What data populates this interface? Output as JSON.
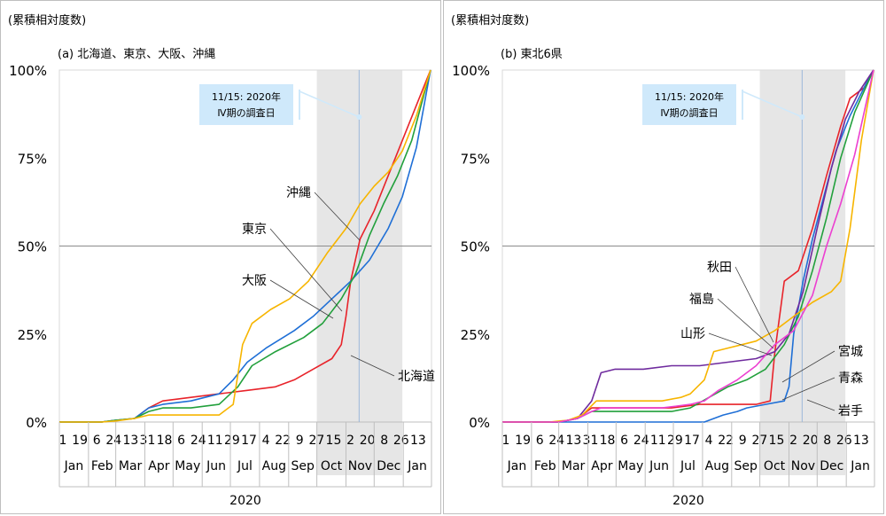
{
  "panels": [
    {
      "ylabel": "(累積相対度数)",
      "title": "(a) 北海道、東京、大阪、沖縄",
      "annotation": {
        "line1": "11/15: 2020年",
        "line2": "Ⅳ期の調査日"
      },
      "callouts": [
        "沖縄",
        "東京",
        "大阪",
        "北海道"
      ]
    },
    {
      "ylabel": "(累積相対度数)",
      "title": "(b) 東北6県",
      "annotation": {
        "line1": "11/15: 2020年",
        "line2": "Ⅳ期の調査日"
      },
      "callouts": [
        "秋田",
        "福島",
        "山形",
        "宮城",
        "青森",
        "岩手"
      ]
    }
  ],
  "axis": {
    "yticks": [
      "0%",
      "25%",
      "50%",
      "75%",
      "100%"
    ],
    "day_ticks": [
      "1",
      "19",
      "6",
      "24",
      "13",
      "31",
      "18",
      "6",
      "24",
      "11",
      "29",
      "17",
      "4",
      "22",
      "9",
      "27",
      "15",
      "2",
      "20",
      "8",
      "26",
      "13"
    ],
    "months": [
      "Jan",
      "Feb",
      "Mar",
      "Apr",
      "May",
      "Jun",
      "Jul",
      "Aug",
      "Sep",
      "Oct",
      "Nov",
      "Dec",
      "Jan"
    ],
    "year": "2020"
  },
  "colors": {
    "北海道": "#e8232a",
    "東京": "#1f6fd6",
    "大阪": "#22a03c",
    "沖縄": "#f7b500",
    "青森": "#e8232a",
    "岩手": "#1f6fd6",
    "宮城": "#22a03c",
    "秋田": "#6f2b9e",
    "山形": "#f7b500",
    "福島": "#ec3fd0",
    "shade": "#e6e6e6",
    "annotation_box": "#cfe9fb"
  },
  "chart_data": [
    {
      "type": "line",
      "title": "(a) 北海道、東京、大阪、沖縄",
      "ylabel": "(累積相対度数)",
      "x_unit": "day of period (0 = 2020-01-01)",
      "x_range": [
        "2020-01-01",
        "2021-01-31"
      ],
      "ylim": [
        0,
        100
      ],
      "shaded_range": [
        "2020-10-01",
        "2020-12-31"
      ],
      "marker": {
        "date": "2020-11-15",
        "label": "11/15: 2020年 Ⅳ期の調査日"
      },
      "series": [
        {
          "name": "北海道",
          "points": [
            [
              0,
              0
            ],
            [
              45,
              0
            ],
            [
              60,
              0.5
            ],
            [
              80,
              1
            ],
            [
              95,
              4
            ],
            [
              110,
              6
            ],
            [
              140,
              7
            ],
            [
              170,
              8
            ],
            [
              200,
              9
            ],
            [
              230,
              10
            ],
            [
              250,
              12
            ],
            [
              270,
              15
            ],
            [
              290,
              18
            ],
            [
              300,
              22
            ],
            [
              305,
              30
            ],
            [
              310,
              40
            ],
            [
              320,
              52
            ],
            [
              335,
              60
            ],
            [
              350,
              70
            ],
            [
              365,
              80
            ],
            [
              380,
              90
            ],
            [
              395,
              100
            ]
          ]
        },
        {
          "name": "東京",
          "points": [
            [
              0,
              0
            ],
            [
              45,
              0
            ],
            [
              60,
              0.5
            ],
            [
              80,
              1
            ],
            [
              95,
              4
            ],
            [
              110,
              5
            ],
            [
              140,
              6
            ],
            [
              170,
              8
            ],
            [
              185,
              12
            ],
            [
              200,
              17
            ],
            [
              220,
              21
            ],
            [
              250,
              26
            ],
            [
              270,
              30
            ],
            [
              290,
              35
            ],
            [
              310,
              40
            ],
            [
              330,
              46
            ],
            [
              350,
              55
            ],
            [
              365,
              64
            ],
            [
              380,
              78
            ],
            [
              395,
              100
            ]
          ]
        },
        {
          "name": "大阪",
          "points": [
            [
              0,
              0
            ],
            [
              45,
              0
            ],
            [
              60,
              0.5
            ],
            [
              80,
              1
            ],
            [
              95,
              3
            ],
            [
              110,
              4
            ],
            [
              140,
              4
            ],
            [
              170,
              5
            ],
            [
              190,
              10
            ],
            [
              205,
              16
            ],
            [
              230,
              20
            ],
            [
              260,
              24
            ],
            [
              280,
              28
            ],
            [
              300,
              35
            ],
            [
              315,
              42
            ],
            [
              330,
              53
            ],
            [
              345,
              62
            ],
            [
              360,
              70
            ],
            [
              375,
              80
            ],
            [
              395,
              100
            ]
          ]
        },
        {
          "name": "沖縄",
          "points": [
            [
              0,
              0
            ],
            [
              45,
              0
            ],
            [
              60,
              0.3
            ],
            [
              80,
              1
            ],
            [
              95,
              2
            ],
            [
              110,
              2
            ],
            [
              140,
              2
            ],
            [
              170,
              2
            ],
            [
              185,
              5
            ],
            [
              195,
              22
            ],
            [
              205,
              28
            ],
            [
              225,
              32
            ],
            [
              245,
              35
            ],
            [
              265,
              40
            ],
            [
              285,
              48
            ],
            [
              305,
              55
            ],
            [
              320,
              62
            ],
            [
              335,
              67
            ],
            [
              350,
              71
            ],
            [
              365,
              77
            ],
            [
              380,
              87
            ],
            [
              395,
              100
            ]
          ]
        }
      ]
    },
    {
      "type": "line",
      "title": "(b) 東北6県",
      "ylabel": "(累積相対度数)",
      "x_unit": "day of period (0 = 2020-01-01)",
      "x_range": [
        "2020-01-01",
        "2021-01-31"
      ],
      "ylim": [
        0,
        100
      ],
      "shaded_range": [
        "2020-10-01",
        "2020-12-31"
      ],
      "marker": {
        "date": "2020-11-15",
        "label": "11/15: 2020年 Ⅳ期の調査日"
      },
      "series": [
        {
          "name": "青森",
          "points": [
            [
              0,
              0
            ],
            [
              60,
              0
            ],
            [
              80,
              1
            ],
            [
              95,
              4
            ],
            [
              110,
              4
            ],
            [
              150,
              4
            ],
            [
              180,
              4
            ],
            [
              210,
              5
            ],
            [
              250,
              5
            ],
            [
              270,
              5
            ],
            [
              285,
              6
            ],
            [
              290,
              20
            ],
            [
              300,
              40
            ],
            [
              315,
              43
            ],
            [
              330,
              55
            ],
            [
              345,
              70
            ],
            [
              360,
              84
            ],
            [
              370,
              92
            ],
            [
              385,
              95
            ],
            [
              395,
              100
            ]
          ]
        },
        {
          "name": "岩手",
          "points": [
            [
              0,
              0
            ],
            [
              180,
              0
            ],
            [
              215,
              0
            ],
            [
              235,
              2
            ],
            [
              250,
              3
            ],
            [
              260,
              4
            ],
            [
              280,
              5
            ],
            [
              300,
              6
            ],
            [
              305,
              10
            ],
            [
              310,
              25
            ],
            [
              320,
              40
            ],
            [
              330,
              52
            ],
            [
              340,
              62
            ],
            [
              355,
              77
            ],
            [
              370,
              87
            ],
            [
              385,
              95
            ],
            [
              395,
              100
            ]
          ]
        },
        {
          "name": "宮城",
          "points": [
            [
              0,
              0
            ],
            [
              60,
              0
            ],
            [
              80,
              1
            ],
            [
              95,
              3
            ],
            [
              110,
              3
            ],
            [
              150,
              3
            ],
            [
              180,
              3
            ],
            [
              200,
              4
            ],
            [
              220,
              7
            ],
            [
              240,
              10
            ],
            [
              260,
              12
            ],
            [
              280,
              15
            ],
            [
              300,
              22
            ],
            [
              315,
              30
            ],
            [
              330,
              43
            ],
            [
              345,
              58
            ],
            [
              360,
              75
            ],
            [
              375,
              88
            ],
            [
              395,
              100
            ]
          ]
        },
        {
          "name": "秋田",
          "points": [
            [
              0,
              0
            ],
            [
              60,
              0
            ],
            [
              80,
              1
            ],
            [
              95,
              6
            ],
            [
              105,
              14
            ],
            [
              120,
              15
            ],
            [
              150,
              15
            ],
            [
              180,
              16
            ],
            [
              210,
              16
            ],
            [
              240,
              17
            ],
            [
              270,
              18
            ],
            [
              290,
              20
            ],
            [
              305,
              25
            ],
            [
              320,
              37
            ],
            [
              335,
              55
            ],
            [
              350,
              72
            ],
            [
              365,
              86
            ],
            [
              380,
              94
            ],
            [
              395,
              100
            ]
          ]
        },
        {
          "name": "山形",
          "points": [
            [
              0,
              0
            ],
            [
              50,
              0
            ],
            [
              70,
              0.5
            ],
            [
              85,
              2
            ],
            [
              100,
              6
            ],
            [
              130,
              6
            ],
            [
              170,
              6
            ],
            [
              190,
              7
            ],
            [
              200,
              8
            ],
            [
              215,
              12
            ],
            [
              225,
              20
            ],
            [
              240,
              21
            ],
            [
              255,
              22
            ],
            [
              270,
              23
            ],
            [
              290,
              26
            ],
            [
              310,
              30
            ],
            [
              330,
              34
            ],
            [
              350,
              37
            ],
            [
              360,
              40
            ],
            [
              370,
              55
            ],
            [
              382,
              80
            ],
            [
              395,
              100
            ]
          ]
        },
        {
          "name": "福島",
          "points": [
            [
              0,
              0
            ],
            [
              60,
              0
            ],
            [
              80,
              1
            ],
            [
              95,
              3
            ],
            [
              105,
              4
            ],
            [
              140,
              4
            ],
            [
              170,
              4
            ],
            [
              200,
              5
            ],
            [
              215,
              6
            ],
            [
              230,
              9
            ],
            [
              250,
              12
            ],
            [
              270,
              16
            ],
            [
              290,
              22
            ],
            [
              310,
              26
            ],
            [
              330,
              36
            ],
            [
              345,
              50
            ],
            [
              360,
              62
            ],
            [
              375,
              76
            ],
            [
              395,
              100
            ]
          ]
        }
      ]
    }
  ]
}
